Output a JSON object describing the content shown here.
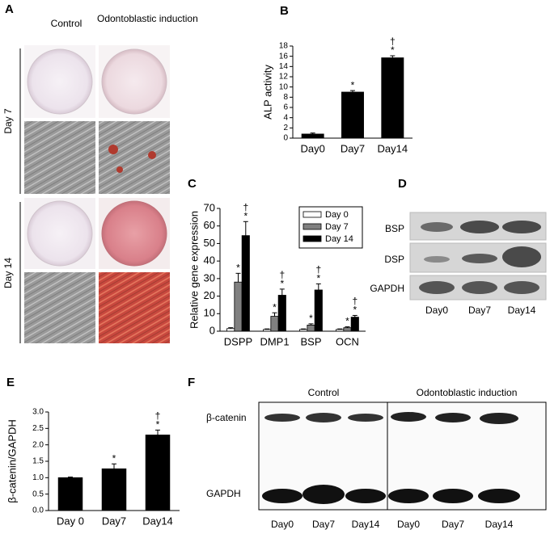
{
  "panel_a": {
    "letter": "A",
    "columns": [
      "Control",
      "Odontoblastic induction"
    ],
    "rows": [
      "Day 7",
      "Day 14"
    ]
  },
  "chart_data": [
    {
      "type": "bar",
      "letter": "B",
      "y_label": "ALP activity",
      "categories": [
        "Day0",
        "Day7",
        "Day14"
      ],
      "values": [
        0.8,
        9.0,
        15.7
      ],
      "errors": [
        0.2,
        0.3,
        0.4
      ],
      "significance": [
        null,
        [
          "*"
        ],
        [
          "†",
          "*"
        ]
      ],
      "color": "#000000",
      "ylim": [
        0,
        18
      ],
      "yticks": [
        0,
        2,
        4,
        6,
        8,
        10,
        12,
        14,
        16,
        18
      ]
    },
    {
      "type": "bar",
      "letter": "C",
      "y_label": "Relative gene expression",
      "categories": [
        "DSPP",
        "DMP1",
        "BSP",
        "OCN"
      ],
      "legend": "upper right",
      "series": [
        {
          "name": "Day 0",
          "color": "#ffffff",
          "values": [
            1.5,
            1,
            1,
            1
          ],
          "errors": [
            0.5,
            0.3,
            0.3,
            0.3
          ],
          "significance": [
            null,
            null,
            null,
            null
          ]
        },
        {
          "name": "Day 7",
          "color": "#808080",
          "values": [
            28,
            8.5,
            3.5,
            2
          ],
          "errors": [
            5,
            2,
            0.7,
            0.5
          ],
          "significance": [
            [
              "*"
            ],
            [
              "*"
            ],
            [
              "*"
            ],
            [
              "*"
            ]
          ]
        },
        {
          "name": "Day 14",
          "color": "#000000",
          "values": [
            54.5,
            20.5,
            23.5,
            8
          ],
          "errors": [
            8,
            3.5,
            3.5,
            1
          ],
          "significance": [
            [
              "†",
              "*"
            ],
            [
              "†",
              "*"
            ],
            [
              "†",
              "*"
            ],
            [
              "†",
              "*"
            ]
          ]
        }
      ],
      "ylim": [
        0,
        70
      ],
      "yticks": [
        0,
        10,
        20,
        30,
        40,
        50,
        60,
        70
      ]
    },
    {
      "type": "bar",
      "letter": "E",
      "y_label": "β-catenin/GAPDH",
      "categories": [
        "Day 0",
        "Day7",
        "Day14"
      ],
      "values": [
        1.0,
        1.27,
        2.3
      ],
      "errors": [
        0.02,
        0.15,
        0.15
      ],
      "significance": [
        null,
        [
          "*"
        ],
        [
          "†",
          "*"
        ]
      ],
      "color": "#000000",
      "ylim": [
        0,
        3.0
      ],
      "yticks": [
        {
          "value": 0,
          "label": "0.0"
        },
        {
          "value": 0.5,
          "label": "0.5"
        },
        {
          "value": 1,
          "label": "1.0"
        },
        {
          "value": 1.5,
          "label": "1.5"
        },
        {
          "value": 2,
          "label": "2.0"
        },
        {
          "value": 2.5,
          "label": "2.5"
        },
        {
          "value": 3,
          "label": "3.0"
        }
      ]
    }
  ],
  "panel_d": {
    "letter": "D",
    "bands": [
      "BSP",
      "DSP",
      "GAPDH"
    ],
    "lanes": [
      "Day0",
      "Day7",
      "Day14"
    ]
  },
  "panel_f": {
    "letter": "F",
    "groups": [
      "Control",
      "Odontoblastic induction"
    ],
    "bands": [
      "β-catenin",
      "GAPDH"
    ],
    "lanes": [
      "Day0",
      "Day7",
      "Day14",
      "Day0",
      "Day7",
      "Day14"
    ]
  }
}
